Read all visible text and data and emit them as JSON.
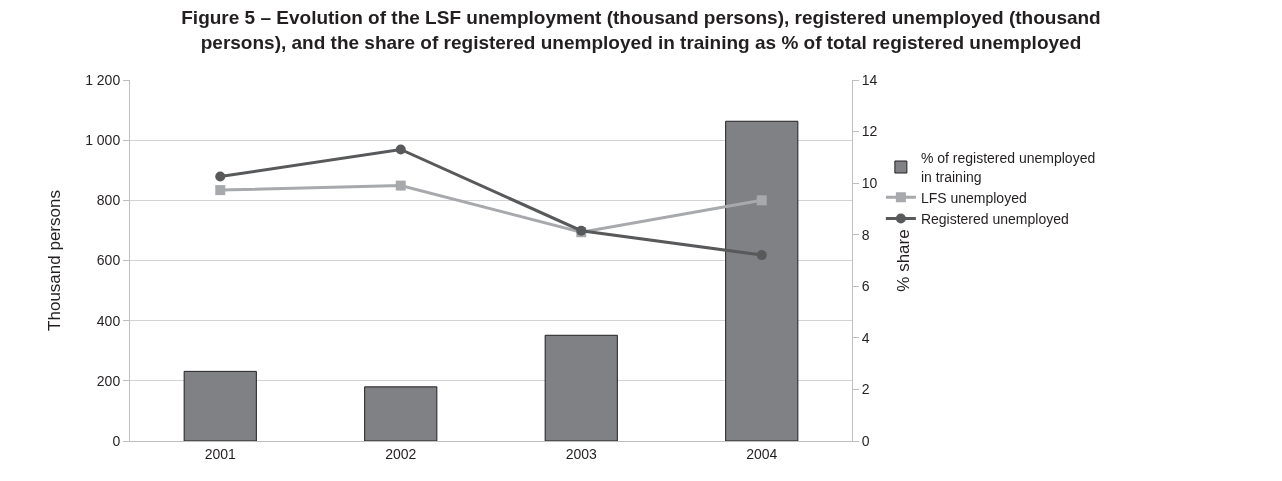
{
  "chart_data": {
    "type": "bar",
    "title": "Figure 5 – Evolution of the LSF unemployment (thousand persons), registered unemployed (thousand persons), and the share of registered unemployed in training as % of total registered unemployed",
    "ylabel": "Thousand persons",
    "y2label": "% share",
    "categories": [
      "2001",
      "2002",
      "2003",
      "2004"
    ],
    "series": [
      {
        "name": "% of registered unemployed in training",
        "axis": "y2",
        "color": "#808184",
        "values": [
          2.7,
          2.1,
          4.1,
          12.4
        ]
      },
      {
        "name": "LFS unemployed",
        "type": "line",
        "color": "#a7a9ac",
        "marker": "square",
        "values": [
          834,
          849,
          694,
          800
        ]
      },
      {
        "name": "Registered unemployed",
        "type": "line",
        "color": "#58595b",
        "marker": "circle",
        "values": [
          879,
          969,
          699,
          618
        ]
      }
    ],
    "ylim": [
      0,
      1200
    ],
    "yticks": [
      0,
      200,
      400,
      600,
      800,
      {
        "value": 1000,
        "label": "1 000"
      },
      {
        "value": 1200,
        "label": "1 200"
      }
    ],
    "y2lim": [
      0,
      14
    ],
    "y2ticks": [
      0,
      2,
      4,
      6,
      8,
      10,
      12,
      14
    ],
    "grid": "y",
    "legend": "right",
    "line_style": "solid"
  }
}
